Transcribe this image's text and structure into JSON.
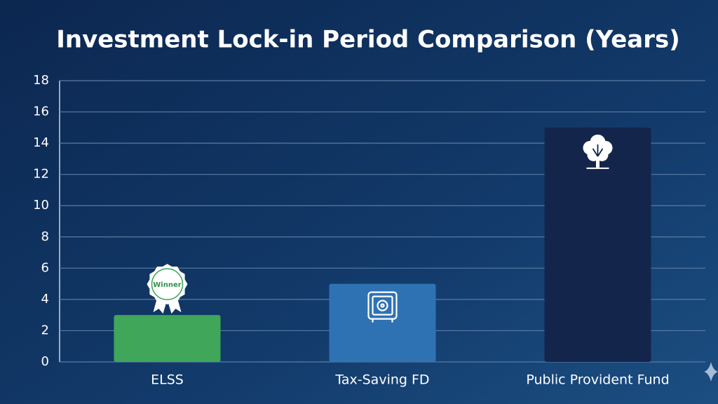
{
  "chart_data": {
    "type": "bar",
    "title": "Investment Lock-in Period Comparison (Years)",
    "categories": [
      "ELSS",
      "Tax-Saving FD",
      "Public Provident Fund"
    ],
    "values": [
      3,
      5,
      15
    ],
    "colors": [
      "#3fa65a",
      "#2f72b4",
      "#14254b"
    ],
    "annotations": [
      "Winner"
    ],
    "ylim": [
      0,
      18
    ],
    "yticks": [
      0,
      2,
      4,
      6,
      8,
      10,
      12,
      14,
      16,
      18
    ],
    "grid": true
  }
}
